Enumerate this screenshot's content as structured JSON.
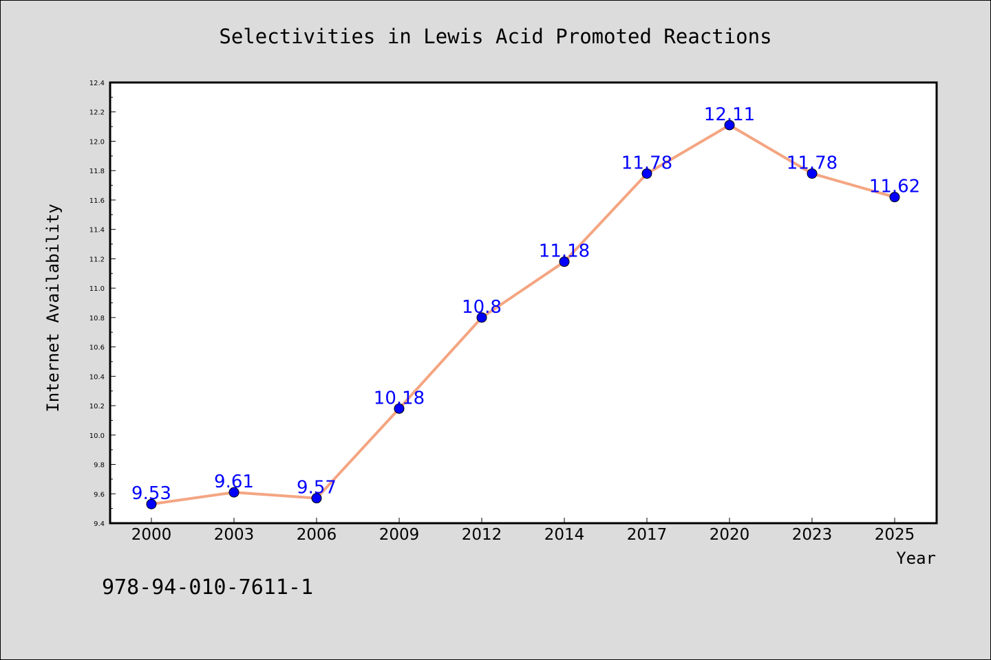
{
  "chart_data": {
    "type": "line",
    "title": "Selectivities in Lewis Acid Promoted Reactions",
    "xlabel": "Year",
    "ylabel": "Internet Availability",
    "categories": [
      "2000",
      "2003",
      "2006",
      "2009",
      "2012",
      "2014",
      "2017",
      "2020",
      "2023",
      "2025"
    ],
    "series": [
      {
        "values": [
          9.53,
          9.61,
          9.57,
          10.18,
          10.8,
          11.18,
          11.78,
          12.11,
          11.78,
          11.62
        ],
        "labels": [
          "9.53",
          "9.61",
          "9.57",
          "10.18",
          "10.8",
          "11.18",
          "11.78",
          "12.11",
          "11.78",
          "11.62"
        ]
      }
    ],
    "ylim": [
      9.4,
      12.4
    ],
    "yticks": [
      "9.4",
      "9.6",
      "9.8",
      "10.0",
      "10.2",
      "10.4",
      "10.6",
      "10.8",
      "11.0",
      "11.2",
      "11.4",
      "11.6",
      "11.8",
      "12.0",
      "12.2",
      "12.4"
    ],
    "grid": false,
    "legend": "none",
    "colors": {
      "line": "#f4a582",
      "marker": "#0000ff",
      "label": "#0000ff",
      "background": "#dcdcdc",
      "plot_background": "#ffffff"
    }
  },
  "footer": {
    "isbn": "978-94-010-7611-1"
  }
}
